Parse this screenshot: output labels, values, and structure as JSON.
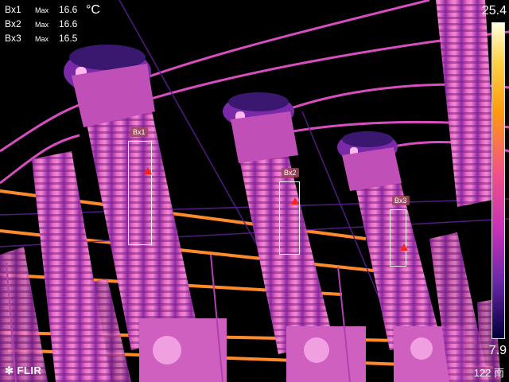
{
  "readouts": [
    {
      "label": "Bx1",
      "stat": "Max",
      "value": "16.6"
    },
    {
      "label": "Bx2",
      "stat": "Max",
      "value": "16.6"
    },
    {
      "label": "Bx3",
      "stat": "Max",
      "value": "16.5"
    }
  ],
  "unit": "°C",
  "boxes": [
    {
      "label": "Bx1"
    },
    {
      "label": "Bx2"
    },
    {
      "label": "Bx3"
    }
  ],
  "scale": {
    "max": "25.4",
    "min": "7.9"
  },
  "brand": "FLIR",
  "corner_text": "122 南",
  "colors": {
    "hot": "#ffd24a",
    "warm": "#f2508a",
    "cool": "#6b28a8",
    "background": "#000000"
  }
}
